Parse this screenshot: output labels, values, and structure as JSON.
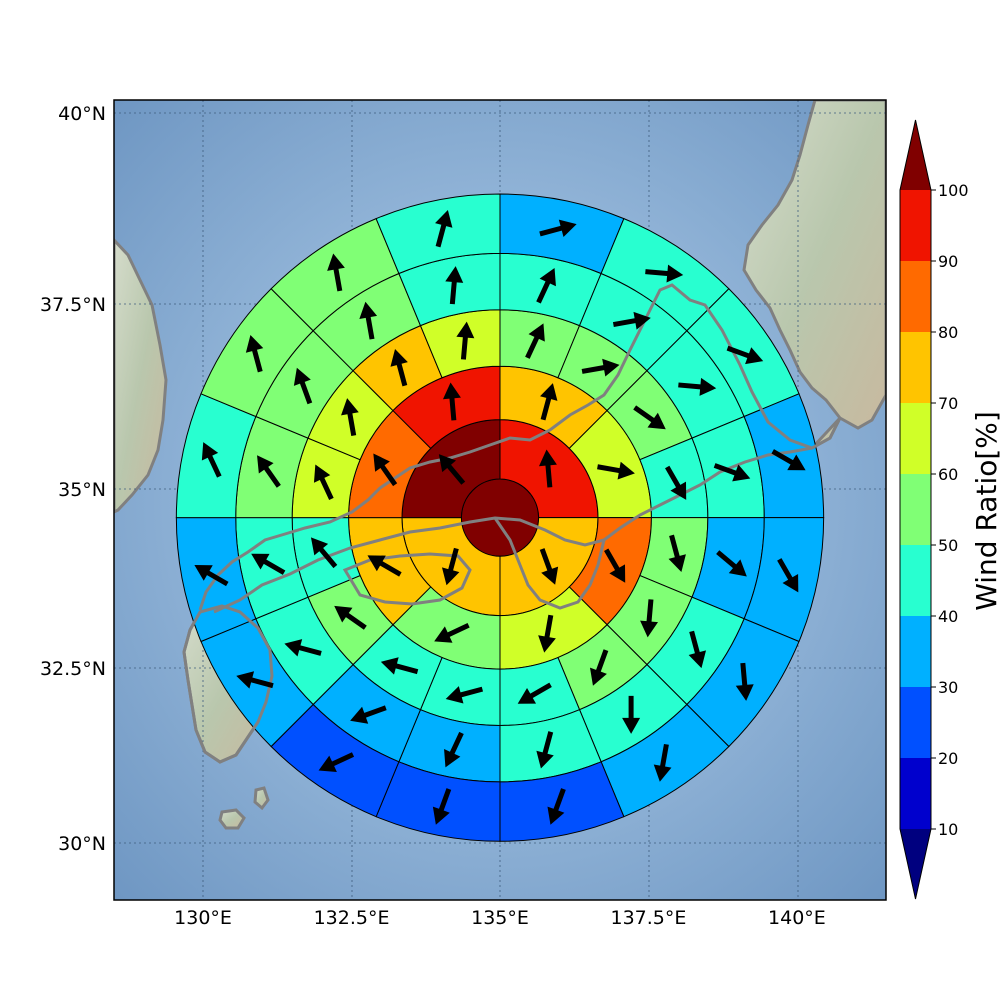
{
  "map": {
    "lat_ticks": [
      {
        "value": 40.0,
        "label": "40°N"
      },
      {
        "value": 37.5,
        "label": "37.5°N"
      },
      {
        "value": 35.0,
        "label": "35°N"
      },
      {
        "value": 32.5,
        "label": "32.5°N"
      },
      {
        "value": 30.0,
        "label": "30°N"
      }
    ],
    "lon_ticks": [
      {
        "value": 130.0,
        "label": "130°E"
      },
      {
        "value": 132.5,
        "label": "132.5°E"
      },
      {
        "value": 135.0,
        "label": "135°E"
      },
      {
        "value": 137.5,
        "label": "137.5°E"
      },
      {
        "value": 140.0,
        "label": "140°E"
      }
    ],
    "lon_range": [
      128.5,
      141.5
    ],
    "lat_range": [
      29.2,
      40.2
    ],
    "colors": {
      "sea": "#8fb2d6",
      "land": "#c9d4c0",
      "coast": "#808080",
      "grid": "#3f5d7d"
    }
  },
  "chart_data": {
    "type": "polar-sector-map",
    "center": {
      "lon": 135.0,
      "lat": 34.6
    },
    "ring_radii_deg": [
      0.65,
      1.65,
      2.55,
      3.5,
      4.45,
      5.45
    ],
    "sector_deg": {
      "ring1": 90,
      "ring2": 45,
      "outer": 22.5
    },
    "sector_order": "clockwise from north",
    "rings": [
      {
        "name": "center",
        "values": [
          100
        ],
        "arrows": [
          null
        ]
      },
      {
        "name": "ring1",
        "values": [
          90,
          70,
          70,
          100
        ],
        "arrows": [
          355,
          160,
          195,
          320
        ]
      },
      {
        "name": "ring2",
        "values": [
          75,
          65,
          80,
          65,
          50,
          75,
          80,
          90
        ],
        "arrows": [
          15,
          100,
          150,
          190,
          245,
          300,
          325,
          355
        ]
      },
      {
        "name": "ring3",
        "values": [
          55,
          55,
          55,
          45,
          55,
          55,
          55,
          45,
          45,
          45,
          55,
          45,
          65,
          65,
          75,
          65
        ],
        "arrows": [
          25,
          80,
          125,
          150,
          165,
          185,
          200,
          240,
          255,
          285,
          305,
          320,
          335,
          350,
          345,
          5
        ]
      },
      {
        "name": "ring4",
        "values": [
          45,
          45,
          45,
          45,
          35,
          45,
          45,
          45,
          35,
          35,
          45,
          45,
          55,
          55,
          55,
          45
        ],
        "arrows": [
          25,
          80,
          95,
          110,
          130,
          165,
          180,
          195,
          205,
          250,
          285,
          300,
          325,
          340,
          350,
          5
        ]
      },
      {
        "name": "ring5",
        "values": [
          35,
          45,
          45,
          35,
          35,
          35,
          35,
          25,
          25,
          25,
          35,
          35,
          45,
          55,
          55,
          45
        ],
        "arrows": [
          75,
          95,
          110,
          120,
          150,
          175,
          190,
          200,
          200,
          245,
          285,
          300,
          335,
          345,
          350,
          15
        ]
      }
    ],
    "colorbar": {
      "label": "Wind Ratio[%]",
      "ticks": [
        10,
        20,
        30,
        40,
        50,
        60,
        70,
        80,
        90,
        100
      ],
      "range": [
        10,
        100
      ],
      "extend": "both",
      "bins": [
        {
          "from": 10,
          "to": 20,
          "color": "#0000cd"
        },
        {
          "from": 20,
          "to": 30,
          "color": "#0050ff"
        },
        {
          "from": 30,
          "to": 40,
          "color": "#00b0ff"
        },
        {
          "from": 40,
          "to": 50,
          "color": "#28ffd0"
        },
        {
          "from": 50,
          "to": 60,
          "color": "#80ff75"
        },
        {
          "from": 60,
          "to": 70,
          "color": "#d0ff28"
        },
        {
          "from": 70,
          "to": 80,
          "color": "#ffc400"
        },
        {
          "from": 80,
          "to": 90,
          "color": "#ff6a00"
        },
        {
          "from": 90,
          "to": 100,
          "color": "#f01400"
        }
      ],
      "under_color": "#00007f",
      "over_color": "#800000"
    }
  }
}
